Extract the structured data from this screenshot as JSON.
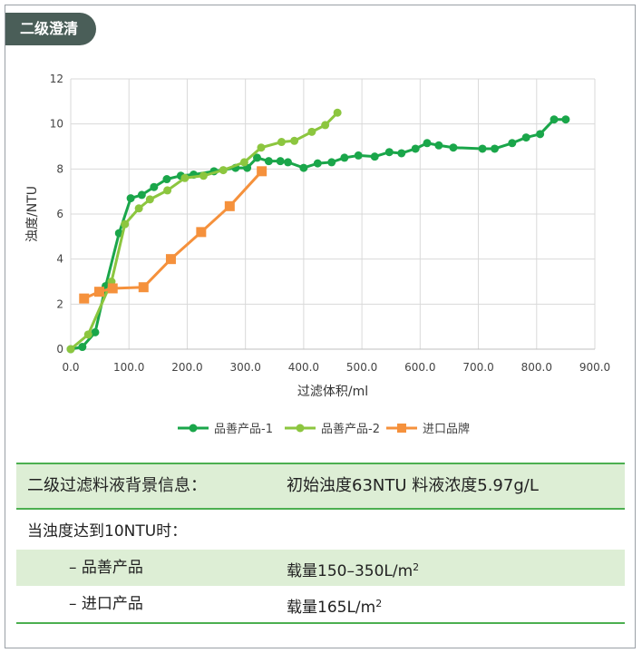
{
  "header": {
    "tag_label": "二级澄清"
  },
  "chart_data": {
    "type": "line",
    "xlabel": "过滤体积/ml",
    "ylabel": "浊度/NTU",
    "xlim": [
      0,
      900
    ],
    "ylim": [
      0,
      12
    ],
    "x_ticks": [
      "0.0",
      "100.0",
      "200.0",
      "300.0",
      "400.0",
      "500.0",
      "600.0",
      "700.0",
      "800.0",
      "900.0"
    ],
    "y_ticks": [
      "0",
      "2",
      "4",
      "6",
      "8",
      "10",
      "12"
    ],
    "grid": true,
    "legend_position": "bottom",
    "series": [
      {
        "name": "品善产品-1",
        "color": "#1aa64a",
        "marker": "circle",
        "points": [
          [
            0,
            0
          ],
          [
            20,
            0.1
          ],
          [
            42,
            0.75
          ],
          [
            60,
            2.8
          ],
          [
            83,
            5.15
          ],
          [
            103,
            6.7
          ],
          [
            122,
            6.85
          ],
          [
            143,
            7.2
          ],
          [
            165,
            7.55
          ],
          [
            189,
            7.7
          ],
          [
            211,
            7.75
          ],
          [
            246,
            7.9
          ],
          [
            283,
            8.05
          ],
          [
            303,
            8.05
          ],
          [
            320,
            8.5
          ],
          [
            340,
            8.35
          ],
          [
            360,
            8.35
          ],
          [
            373,
            8.3
          ],
          [
            400,
            8.05
          ],
          [
            424,
            8.25
          ],
          [
            448,
            8.3
          ],
          [
            470,
            8.5
          ],
          [
            494,
            8.6
          ],
          [
            522,
            8.55
          ],
          [
            547,
            8.75
          ],
          [
            568,
            8.7
          ],
          [
            592,
            8.9
          ],
          [
            612,
            9.15
          ],
          [
            632,
            9.05
          ],
          [
            657,
            8.95
          ],
          [
            707,
            8.9
          ],
          [
            728,
            8.9
          ],
          [
            758,
            9.15
          ],
          [
            782,
            9.4
          ],
          [
            806,
            9.55
          ],
          [
            830,
            10.2
          ],
          [
            850,
            10.2
          ]
        ]
      },
      {
        "name": "品善产品-2",
        "color": "#8cc63f",
        "marker": "circle",
        "points": [
          [
            0,
            0
          ],
          [
            30,
            0.65
          ],
          [
            70,
            3.0
          ],
          [
            93,
            5.55
          ],
          [
            117,
            6.25
          ],
          [
            136,
            6.65
          ],
          [
            166,
            7.05
          ],
          [
            196,
            7.6
          ],
          [
            228,
            7.7
          ],
          [
            262,
            7.95
          ],
          [
            298,
            8.3
          ],
          [
            327,
            8.95
          ],
          [
            362,
            9.2
          ],
          [
            384,
            9.25
          ],
          [
            414,
            9.65
          ],
          [
            437,
            9.95
          ],
          [
            458,
            10.5
          ]
        ]
      },
      {
        "name": "进口品牌",
        "color": "#f5913c",
        "marker": "square",
        "points": [
          [
            23,
            2.25
          ],
          [
            49,
            2.55
          ],
          [
            72,
            2.7
          ],
          [
            125,
            2.75
          ],
          [
            172,
            4.0
          ],
          [
            224,
            5.2
          ],
          [
            273,
            6.35
          ],
          [
            328,
            7.9
          ]
        ]
      }
    ]
  },
  "info": {
    "background_label": "二级过滤料液背景信息：",
    "background_value": "初始浊度63NTU  料液浓度5.97g/L",
    "condition": "当浊度达到10NTU时：",
    "rows": [
      {
        "label": "–  品善产品",
        "value": "载量150–350L/m",
        "sup": "2"
      },
      {
        "label": "–  进口产品",
        "value": "载量165L/m",
        "sup": "2"
      }
    ]
  },
  "colors": {
    "accent_green": "#4caf50",
    "shade": "#ddeed5",
    "tag_bg": "#4a5e58"
  }
}
